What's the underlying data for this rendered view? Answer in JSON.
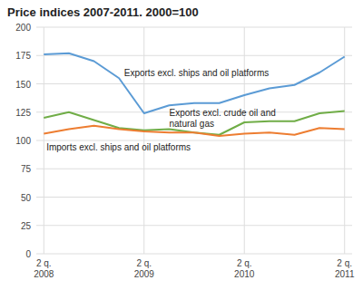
{
  "chart_data": {
    "type": "line",
    "title": "Price indices 2007-2011. 2000=100",
    "categories": [
      "2 q.\n2008",
      null,
      null,
      null,
      "2 q.\n2009",
      null,
      null,
      null,
      "2 q.\n2010",
      null,
      null,
      null,
      "2 q.\n2011"
    ],
    "series": [
      {
        "name": "Exports excl. ships and oil platforms",
        "color": "#5B9BD5",
        "values": [
          176,
          177,
          170,
          155,
          124,
          131,
          133,
          133,
          140,
          146,
          149,
          160,
          174
        ]
      },
      {
        "name": "Exports excl. crude oil and natural gas",
        "color": "#70AD47",
        "values": [
          120,
          125,
          118,
          111,
          109,
          110,
          107,
          105,
          116,
          117,
          117,
          124,
          126
        ]
      },
      {
        "name": "Imports excl. ships and oil platforms",
        "color": "#ED7D31",
        "values": [
          106,
          110,
          113,
          110,
          108,
          107,
          107,
          104,
          106,
          107,
          105,
          111,
          110
        ]
      }
    ],
    "annotations": [
      "Exports excl. ships and oil platforms",
      "Exports excl. crude oil and\nnatural gas",
      "Imports excl. ships and oil platforms"
    ],
    "ylim": [
      0,
      200
    ],
    "yticks": [
      0,
      25,
      50,
      75,
      100,
      125,
      150,
      175,
      200
    ],
    "grid": true
  }
}
